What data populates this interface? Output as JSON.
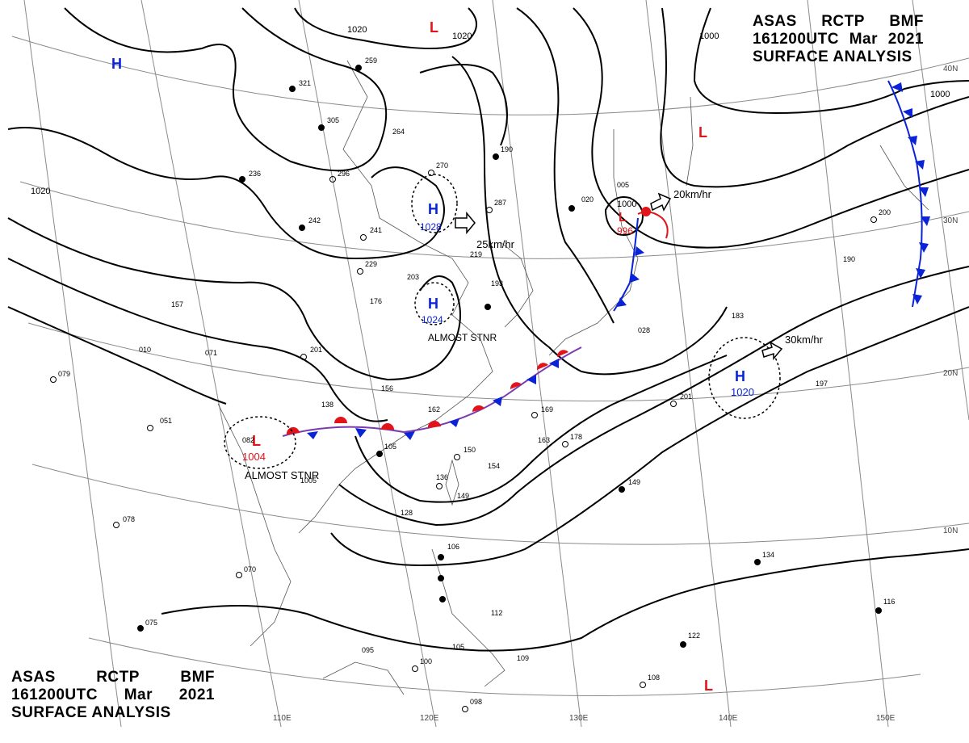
{
  "header": {
    "line1": [
      "ASAS",
      "RCTP",
      "BMF"
    ],
    "line2": [
      "161200UTC",
      "Mar",
      "2021"
    ],
    "line3": "SURFACE ANALYSIS"
  },
  "colors": {
    "high": "#0a23d6",
    "low": "#e1141a",
    "isobar": "#000000",
    "grid": "#7f7f7f"
  },
  "grid": {
    "longitudes": [
      "110E",
      "120E",
      "130E",
      "140E",
      "150E"
    ],
    "latitudes": [
      "10N",
      "20N",
      "30N",
      "40N"
    ]
  },
  "isobars": [
    "1000",
    "1000",
    "1000",
    "1020",
    "1020",
    "1020"
  ],
  "pressure_centers": [
    {
      "type": "H",
      "value": "1028",
      "motion": "25km/hr"
    },
    {
      "type": "H",
      "value": "1024",
      "motion": "ALMOST STNR"
    },
    {
      "type": "H",
      "value": "1020",
      "motion": "30km/hr"
    },
    {
      "type": "L",
      "value": "1004",
      "motion": "ALMOST STNR"
    },
    {
      "type": "L",
      "value": "996",
      "motion": "20km/hr"
    },
    {
      "type": "H",
      "value": "",
      "motion": ""
    },
    {
      "type": "L",
      "value": "",
      "motion": ""
    },
    {
      "type": "L",
      "value": "",
      "motion": ""
    },
    {
      "type": "L",
      "value": "",
      "motion": ""
    }
  ],
  "fronts": [
    {
      "type": "stationary"
    },
    {
      "type": "cold"
    },
    {
      "type": "occluded"
    }
  ],
  "stations": [
    "259",
    "321",
    "305",
    "264",
    "236",
    "296",
    "270",
    "242",
    "241",
    "229",
    "203",
    "176",
    "157",
    "190",
    "287",
    "219",
    "201",
    "010",
    "071",
    "079",
    "051",
    "138",
    "156",
    "162",
    "105",
    "150",
    "154",
    "136",
    "149",
    "128",
    "169",
    "178",
    "149",
    "095",
    "070",
    "075",
    "106",
    "112",
    "105",
    "109",
    "100",
    "098",
    "201",
    "197",
    "183",
    "134",
    "116",
    "122",
    "108",
    "190",
    "005",
    "020",
    "200",
    "078",
    "1005",
    "082",
    "163",
    "193",
    "028"
  ]
}
